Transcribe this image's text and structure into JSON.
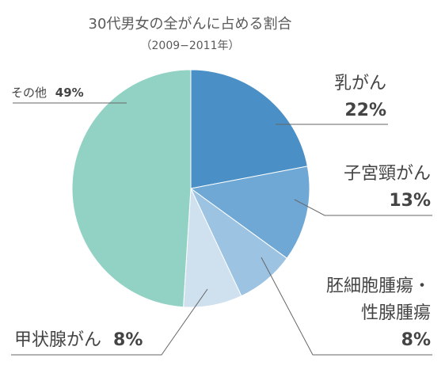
{
  "chart_data": {
    "type": "pie",
    "title": "30代男女の全がんに占める割合",
    "subtitle": "（2009−2011年）",
    "slices": [
      {
        "name": "乳がん",
        "value": 22,
        "value_label": "22%",
        "color": "#4a90c6"
      },
      {
        "name": "子宮頸がん",
        "value": 13,
        "value_label": "13%",
        "color": "#6fa8d5"
      },
      {
        "name": "胚細胞腫瘍・性腺腫瘍",
        "value": 8,
        "value_label": "8%",
        "color": "#9dc3e2"
      },
      {
        "name": "甲状腺がん",
        "value": 8,
        "value_label": "8%",
        "color": "#cfe0ee"
      },
      {
        "name": "その他",
        "value": 49,
        "value_label": "49%",
        "color": "#91d2c4"
      }
    ],
    "label_lines": {
      "slice_0": [
        "乳がん",
        "22%"
      ],
      "slice_1": [
        "子宮頸がん",
        "13%"
      ],
      "slice_2": [
        "胚細胞腫瘍・",
        "性腺腫瘍",
        "8%"
      ],
      "slice_3": [
        "甲状腺がん",
        "8%"
      ],
      "slice_4": [
        "その他",
        "49%"
      ]
    }
  }
}
